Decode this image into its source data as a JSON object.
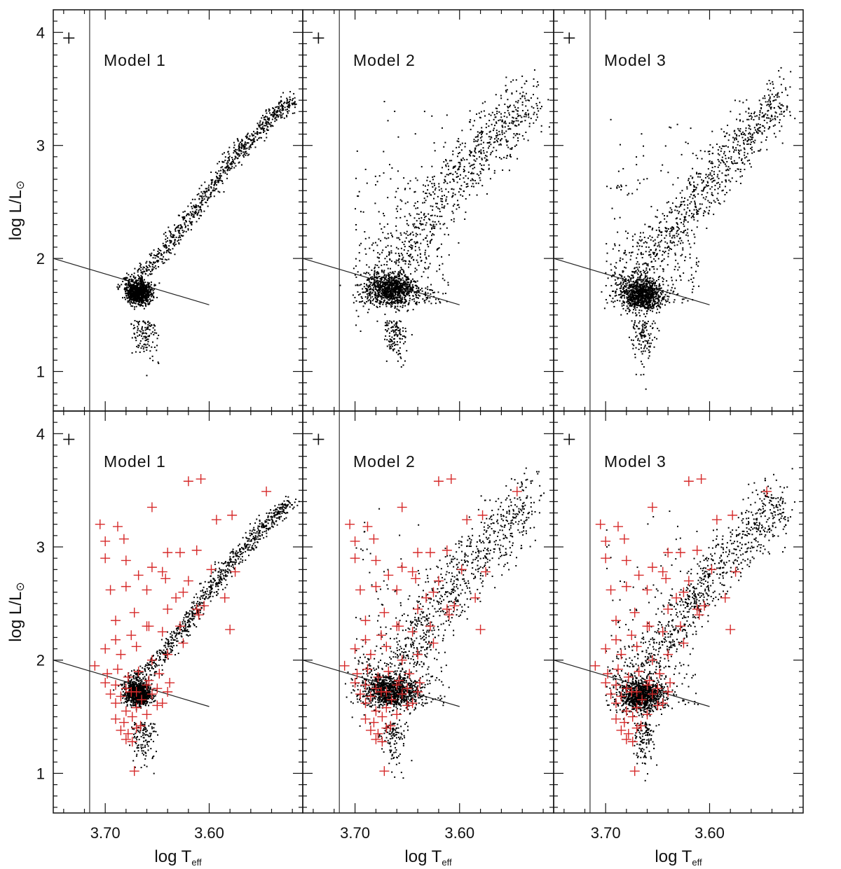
{
  "chart_data": {
    "type": "scatter",
    "layout": "2 rows x 3 columns, shared axes",
    "x_axis": {
      "label": "log T",
      "label_subscript": "eff",
      "range": [
        3.75,
        3.51
      ],
      "reversed": true,
      "major_ticks": [
        3.7,
        3.6
      ],
      "tick_labels": [
        "3.70",
        "3.60"
      ]
    },
    "y_axis": {
      "label": "log L/L",
      "label_symbol": "⊙",
      "range": [
        0.65,
        4.2
      ],
      "major_ticks": [
        1,
        2,
        3,
        4
      ],
      "tick_labels": [
        "1",
        "2",
        "3",
        "4"
      ]
    },
    "error_bar_marker": {
      "x": 3.735,
      "y": 3.95
    },
    "vertical_line": {
      "x": 3.715
    },
    "boundary_line": {
      "x": [
        3.75,
        3.6
      ],
      "y": [
        2.0,
        1.59
      ]
    },
    "panels": [
      {
        "row": 0,
        "col": 0,
        "label": "Model 1",
        "series": [
          {
            "kind": "model-points"
          }
        ]
      },
      {
        "row": 0,
        "col": 1,
        "label": "Model 2",
        "series": [
          {
            "kind": "model-points"
          }
        ]
      },
      {
        "row": 0,
        "col": 2,
        "label": "Model 3",
        "series": [
          {
            "kind": "model-points"
          }
        ]
      },
      {
        "row": 1,
        "col": 0,
        "label": "Model 1",
        "series": [
          {
            "kind": "model-points"
          },
          {
            "kind": "observed-stars"
          }
        ]
      },
      {
        "row": 1,
        "col": 1,
        "label": "Model 2",
        "series": [
          {
            "kind": "model-points"
          },
          {
            "kind": "observed-stars"
          }
        ]
      },
      {
        "row": 1,
        "col": 2,
        "label": "Model 3",
        "series": [
          {
            "kind": "model-points"
          },
          {
            "kind": "observed-stars"
          }
        ]
      }
    ],
    "model_points": {
      "marker": "dot",
      "color": "#000000",
      "description_by_model": {
        "Model 1": "red clump near (3.665, 1.70) plus a narrow red-giant branch rising to (3.52, 3.40)",
        "Model 2": "red clump near (3.665, 1.72) plus a broad scattered giant branch rising to (3.52, 3.40)",
        "Model 3": "red clump near (3.665, 1.68) plus a scattered giant branch rising to (3.52, 3.35)"
      },
      "giant_branch": {
        "x": [
          3.685,
          3.66,
          3.64,
          3.62,
          3.6,
          3.58,
          3.56,
          3.54,
          3.52
        ],
        "y": [
          1.75,
          1.9,
          2.1,
          2.35,
          2.6,
          2.85,
          3.05,
          3.25,
          3.4
        ]
      },
      "clump": {
        "x": 3.668,
        "y": 1.7
      }
    },
    "observed_stars": {
      "marker": "plus",
      "color": "#d62a2a",
      "x": [
        3.705,
        3.7,
        3.688,
        3.68,
        3.655,
        3.64,
        3.62,
        3.608,
        3.593,
        3.578,
        3.545,
        3.7,
        3.682,
        3.668,
        3.655,
        3.642,
        3.628,
        3.612,
        3.598,
        3.575,
        3.695,
        3.68,
        3.66,
        3.645,
        3.632,
        3.62,
        3.605,
        3.585,
        3.69,
        3.672,
        3.658,
        3.64,
        3.625,
        3.61,
        3.69,
        3.675,
        3.66,
        3.645,
        3.628,
        3.612,
        3.58,
        3.7,
        3.685,
        3.67,
        3.655,
        3.64,
        3.625,
        3.71,
        3.698,
        3.688,
        3.678,
        3.668,
        3.658,
        3.648,
        3.638,
        3.7,
        3.69,
        3.68,
        3.67,
        3.66,
        3.65,
        3.64,
        3.695,
        3.685,
        3.675,
        3.665,
        3.655,
        3.645,
        3.69,
        3.68,
        3.67,
        3.66,
        3.65,
        3.69,
        3.682,
        3.674,
        3.666,
        3.685,
        3.678,
        3.67,
        3.68,
        3.674,
        3.672
      ],
      "y": [
        3.2,
        2.9,
        3.18,
        2.88,
        3.35,
        2.95,
        3.58,
        3.6,
        3.24,
        3.28,
        3.49,
        3.05,
        3.07,
        2.75,
        2.82,
        2.72,
        2.95,
        2.97,
        2.8,
        2.78,
        2.62,
        2.65,
        2.62,
        2.78,
        2.55,
        2.7,
        2.48,
        2.55,
        2.35,
        2.42,
        2.3,
        2.45,
        2.6,
        2.4,
        2.18,
        2.22,
        2.3,
        2.25,
        2.3,
        2.45,
        2.27,
        2.1,
        2.05,
        2.12,
        2.0,
        2.05,
        2.15,
        1.95,
        1.88,
        1.92,
        1.85,
        1.9,
        1.82,
        1.88,
        1.8,
        1.8,
        1.78,
        1.75,
        1.72,
        1.78,
        1.75,
        1.72,
        1.7,
        1.68,
        1.72,
        1.65,
        1.7,
        1.62,
        1.62,
        1.55,
        1.58,
        1.52,
        1.6,
        1.48,
        1.45,
        1.5,
        1.42,
        1.38,
        1.35,
        1.4,
        1.3,
        1.28,
        1.02
      ]
    }
  }
}
